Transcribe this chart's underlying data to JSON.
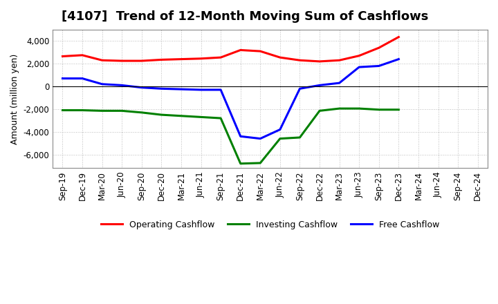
{
  "title": "[4107]  Trend of 12-Month Moving Sum of Cashflows",
  "ylabel": "Amount (million yen)",
  "ylim": [
    -7200,
    5000
  ],
  "yticks": [
    -6000,
    -4000,
    -2000,
    0,
    2000,
    4000
  ],
  "background_color": "#ffffff",
  "grid_color": "#bbbbbb",
  "x_labels": [
    "Sep-19",
    "Dec-19",
    "Mar-20",
    "Jun-20",
    "Sep-20",
    "Dec-20",
    "Mar-21",
    "Jun-21",
    "Sep-21",
    "Dec-21",
    "Mar-22",
    "Jun-22",
    "Sep-22",
    "Dec-22",
    "Mar-23",
    "Jun-23",
    "Sep-23",
    "Dec-23",
    "Mar-24",
    "Jun-24",
    "Sep-24",
    "Dec-24"
  ],
  "operating_cashflow": [
    2650,
    2750,
    2300,
    2250,
    2250,
    2350,
    2400,
    2450,
    2550,
    3200,
    3100,
    2550,
    2300,
    2200,
    2300,
    2700,
    3400,
    4350,
    null,
    null,
    null,
    null
  ],
  "investing_cashflow": [
    -2100,
    -2100,
    -2150,
    -2150,
    -2300,
    -2500,
    -2600,
    -2700,
    -2800,
    -6800,
    -6750,
    -4600,
    -4500,
    -2150,
    -1950,
    -1950,
    -2050,
    -2050,
    null,
    null,
    null,
    null
  ],
  "free_cashflow": [
    700,
    700,
    200,
    100,
    -100,
    -200,
    -250,
    -300,
    -300,
    -4400,
    -4600,
    -3800,
    -200,
    100,
    300,
    1700,
    1800,
    2400,
    null,
    null,
    null,
    null
  ],
  "operating_color": "#ff0000",
  "investing_color": "#008000",
  "free_color": "#0000ff",
  "line_width": 2.2
}
